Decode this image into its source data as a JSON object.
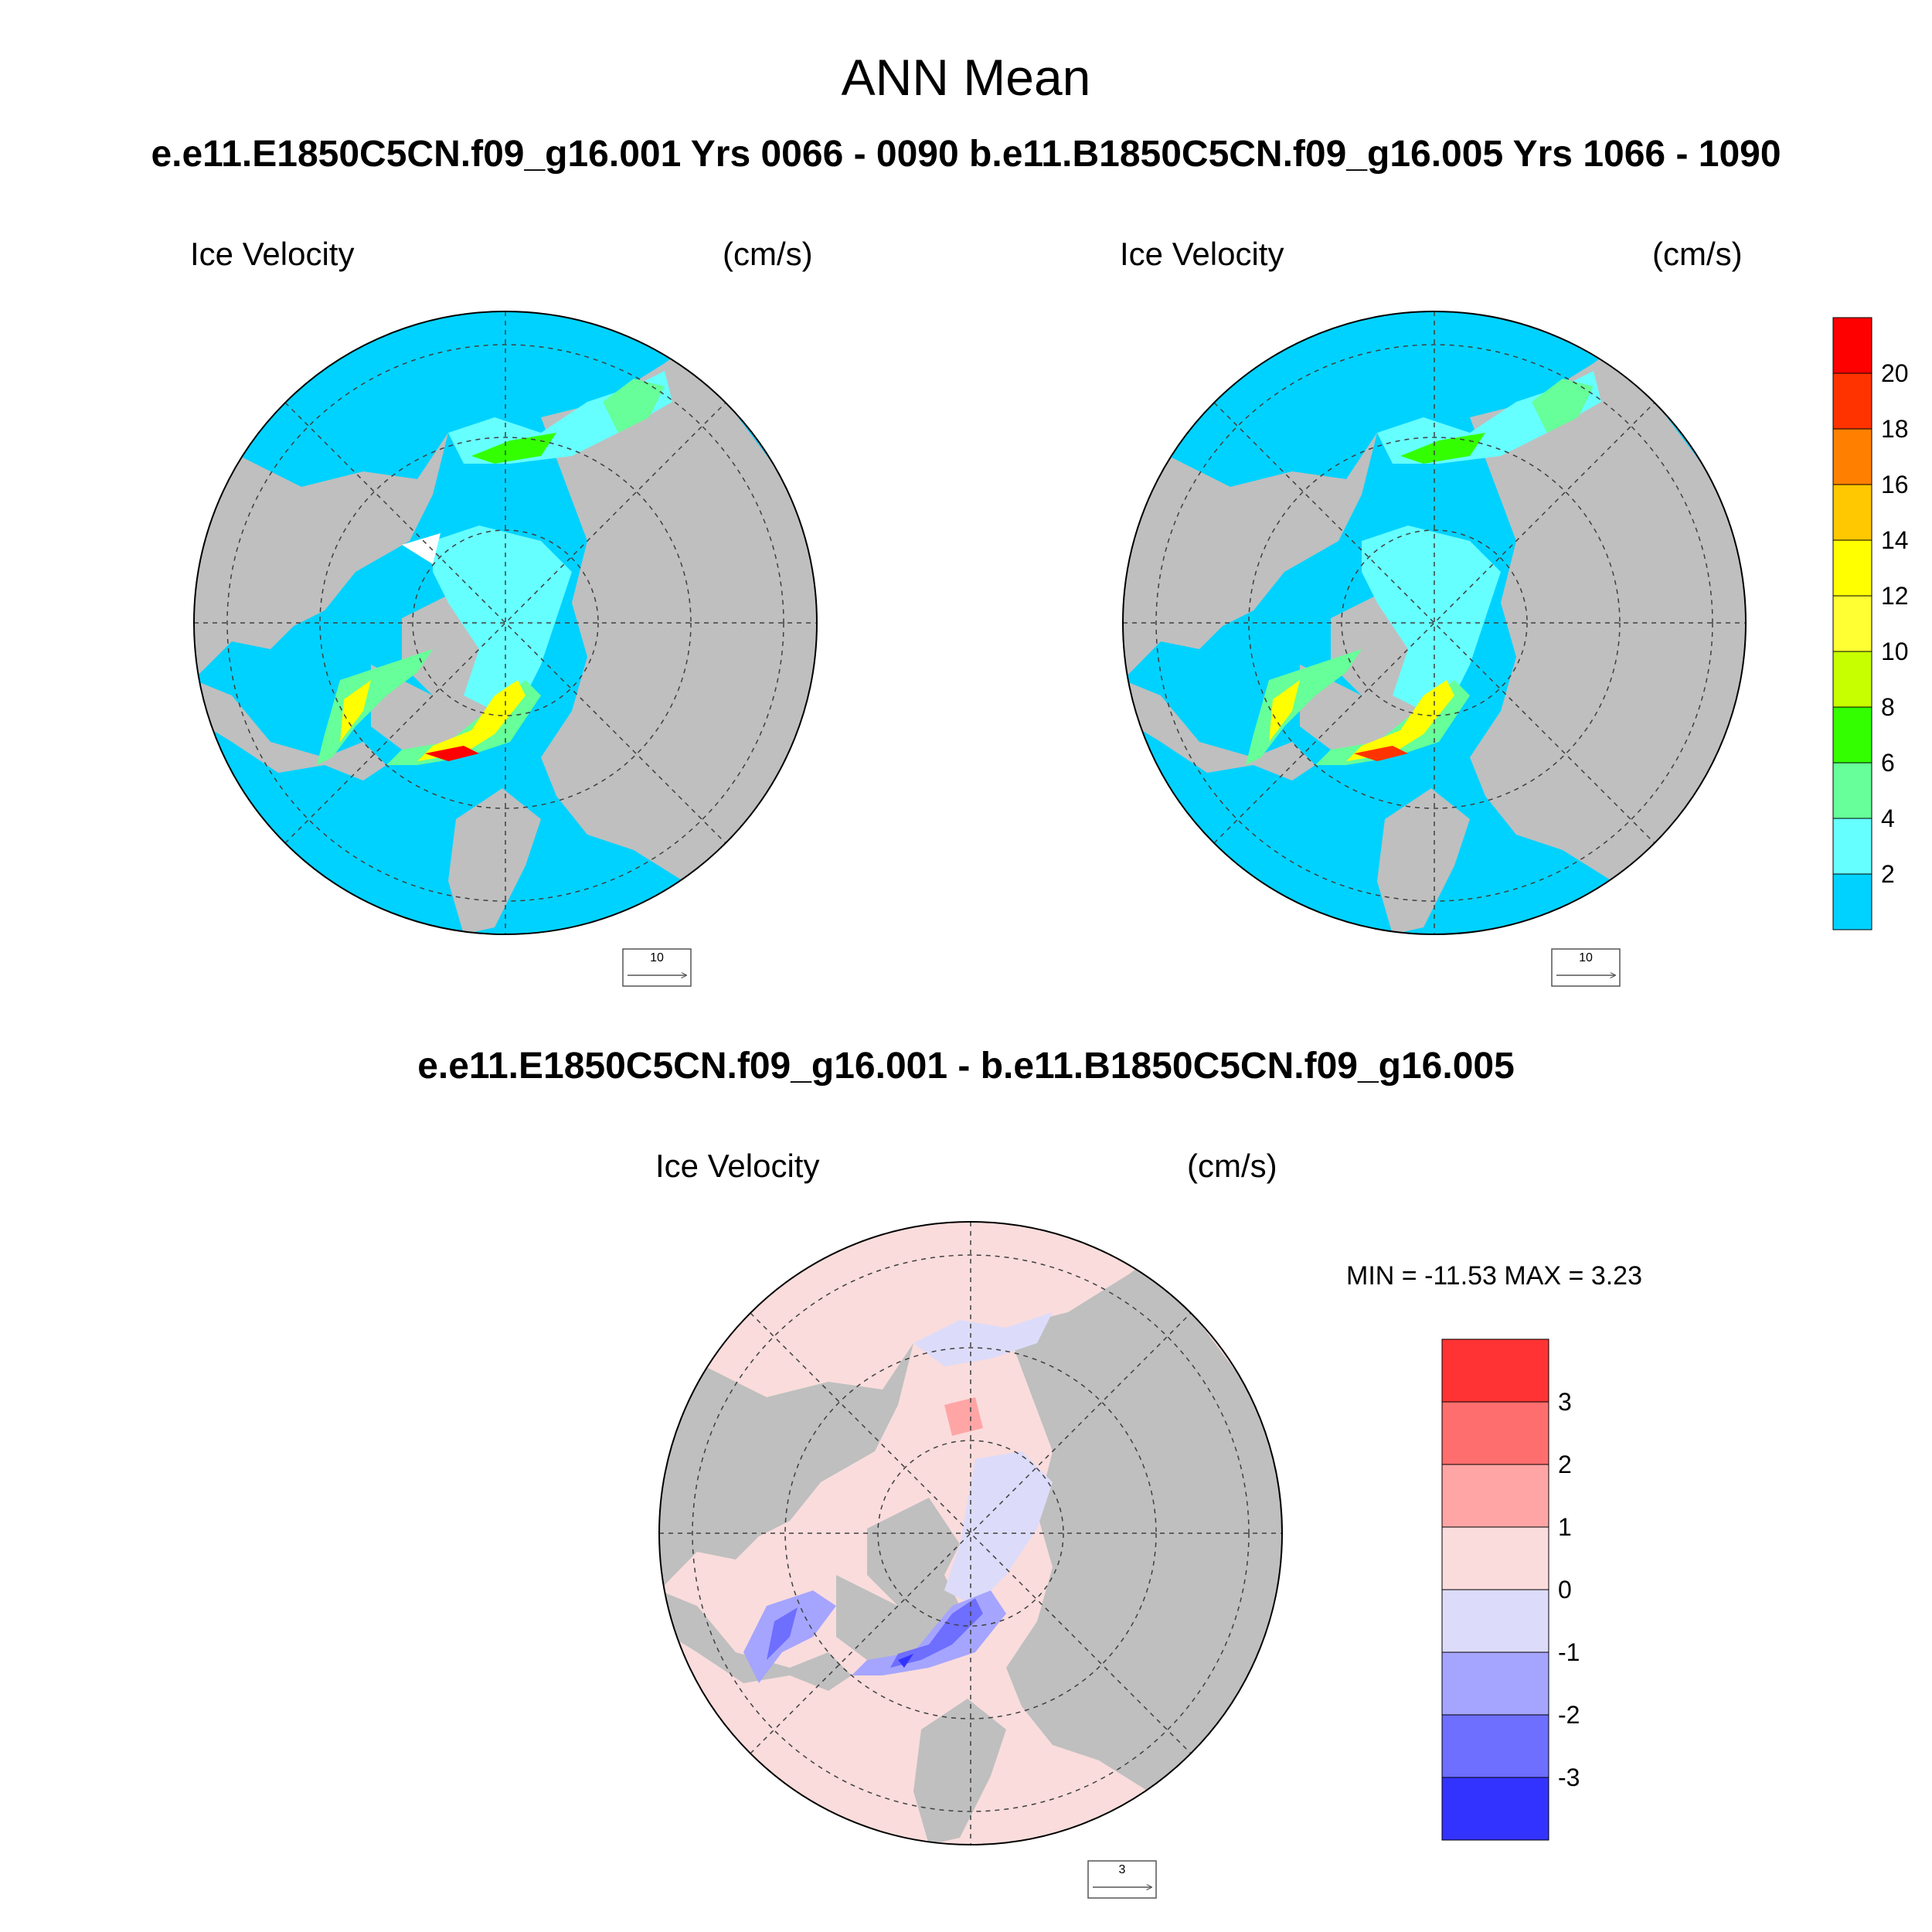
{
  "figure": {
    "title": "ANN Mean",
    "subtitle": "e.e11.E1850C5CN.f09_g16.001  Yrs 0066 - 0090 b.e11.B1850C5CN.f09_g16.005  Yrs 1066 - 1090",
    "diff_title": "e.e11.E1850C5CN.f09_g16.001 - b.e11.B1850C5CN.f09_g16.005"
  },
  "panels": [
    {
      "id": "case1",
      "left_label": "Ice Velocity",
      "right_label": "(cm/s)",
      "ref_vector": "10"
    },
    {
      "id": "case2",
      "left_label": "Ice Velocity",
      "right_label": "(cm/s)",
      "ref_vector": "10"
    },
    {
      "id": "diff",
      "left_label": "Ice Velocity",
      "right_label": "(cm/s)",
      "ref_vector": "3",
      "min_max": "MIN = -11.53 MAX =   3.23"
    }
  ],
  "colorbar_top": {
    "labels": [
      "20",
      "18",
      "16",
      "14",
      "12",
      "10",
      "8",
      "6",
      "4",
      "2"
    ],
    "colors": [
      "#ff0000",
      "#ff3300",
      "#ff8000",
      "#ffc800",
      "#ffff00",
      "#ffff33",
      "#c8ff00",
      "#33ff00",
      "#66ff99",
      "#66ffff",
      "#00d2ff"
    ]
  },
  "colorbar_diff": {
    "labels": [
      "3",
      "2",
      "1",
      "0",
      "-1",
      "-2",
      "-3"
    ],
    "colors": [
      "#ff3333",
      "#ff6e6e",
      "#ffa5a5",
      "#fadcdc",
      "#dcdcfa",
      "#a5a5ff",
      "#6e6eff",
      "#3333ff"
    ]
  },
  "colors": {
    "land": "#bfbfbf",
    "ocean_ice": "#00d2ff",
    "diff_ocean": "#fadcdc",
    "diff_neg": "#dcdcfa"
  }
}
